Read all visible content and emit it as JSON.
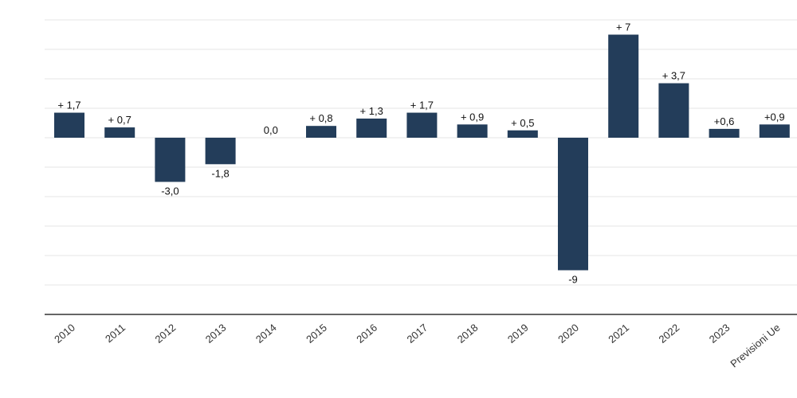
{
  "chart_data": {
    "type": "bar",
    "categories": [
      "2010",
      "2011",
      "2012",
      "2013",
      "2014",
      "2015",
      "2016",
      "2017",
      "2018",
      "2019",
      "2020",
      "2021",
      "2022",
      "2023",
      "Previsioni Ue"
    ],
    "values": [
      1.7,
      0.7,
      -3.0,
      -1.8,
      0.0,
      0.8,
      1.3,
      1.7,
      0.9,
      0.5,
      -9,
      7,
      3.7,
      0.6,
      0.9
    ],
    "data_labels": [
      "+ 1,7",
      "+ 0,7",
      "-3,0",
      "-1,8",
      "0,0",
      "+ 0,8",
      "+ 1,3",
      "+ 1,7",
      "+ 0,9",
      "+ 0,5",
      "-9",
      "+ 7",
      "+ 3,7",
      "+0,6",
      "+0,9"
    ],
    "ylim": [
      -12,
      8
    ],
    "grid": true,
    "bar_color": "#233d5a"
  }
}
